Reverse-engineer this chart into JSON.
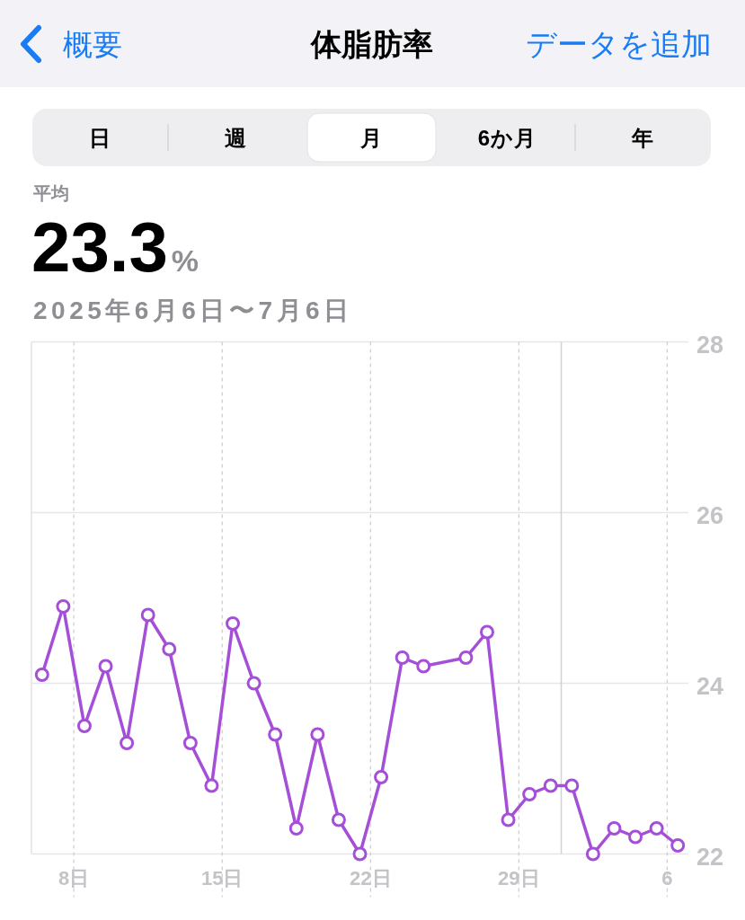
{
  "chart_data": {
    "type": "line",
    "title": "体脂肪率",
    "subtitle": "2025年6月6日〜7月6日",
    "annotations": [
      "概要",
      "データを追加",
      "日",
      "週",
      "月",
      "6か月",
      "年",
      "平均",
      "23.3%"
    ],
    "x": [
      "2025-06-06T12:00",
      "2025-06-07T12:00",
      "2025-06-08T12:00",
      "2025-06-09T12:00",
      "2025-06-10T12:00",
      "2025-06-11T12:00",
      "2025-06-12T12:00",
      "2025-06-13T12:00",
      "2025-06-14T12:00",
      "2025-06-15T12:00",
      "2025-06-16T12:00",
      "2025-06-17T12:00",
      "2025-06-18T12:00",
      "2025-06-19T12:00",
      "2025-06-20T12:00",
      "2025-06-21T12:00",
      "2025-06-22T12:00",
      "2025-06-23T12:00",
      "2025-06-24T12:00",
      "2025-06-26T12:00",
      "2025-06-27T12:00",
      "2025-06-28T12:00",
      "2025-06-29T12:00",
      "2025-06-30T12:00",
      "2025-07-01T12:00",
      "2025-07-02T12:00",
      "2025-07-03T12:00",
      "2025-07-04T12:00",
      "2025-07-05T12:00",
      "2025-07-06T12:00"
    ],
    "series": [
      {
        "color": "#a54fd8",
        "values": [
          24.1,
          24.9,
          23.5,
          24.2,
          23.3,
          24.8,
          24.4,
          23.3,
          22.8,
          24.7,
          24.0,
          23.4,
          22.3,
          23.4,
          22.4,
          22.0,
          22.9,
          24.3,
          24.2,
          24.3,
          24.6,
          22.4,
          22.7,
          22.8,
          22.8,
          22.0,
          22.3,
          22.2,
          22.3,
          22.1
        ]
      }
    ],
    "xlim": [
      "2025-06-06",
      "2025-07-07"
    ],
    "xticks": [
      {
        "value": "2025-06-08",
        "label": "8日"
      },
      {
        "value": "2025-06-15",
        "label": "15日"
      },
      {
        "value": "2025-06-22",
        "label": "22日"
      },
      {
        "value": "2025-06-29",
        "label": "29日"
      },
      {
        "value": "2025-07-06",
        "label": "6"
      }
    ],
    "ylim": [
      22,
      28
    ],
    "yticks": [
      22,
      24,
      26,
      28
    ],
    "ref_lines": [
      {
        "axis": "x",
        "value": "2025-07-01",
        "color": "#d1d1d6",
        "line_style": "solid"
      }
    ],
    "grid": true,
    "marker": "circle",
    "line_style": "solid"
  }
}
